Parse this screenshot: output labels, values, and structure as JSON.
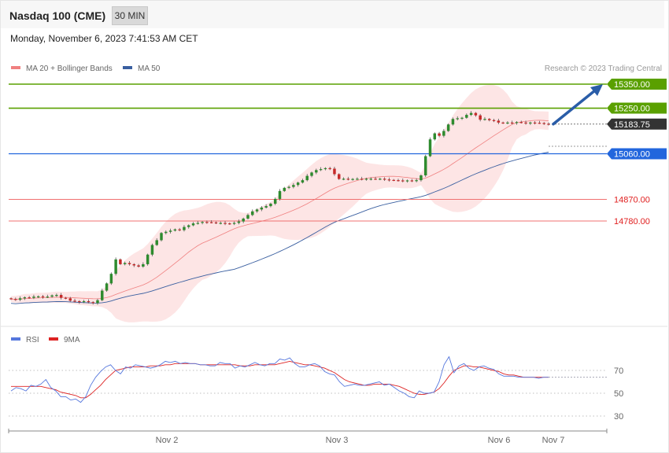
{
  "header": {
    "title": "Nasdaq 100 (CME)",
    "timeframe": "30 MIN",
    "datetime": "Monday, November 6, 2023 7:41:53 AM CET"
  },
  "credit": "Research © 2023 Trading Central",
  "colors": {
    "resistance": "#5aa000",
    "support_blue": "#2266dd",
    "support_red": "#e02020",
    "current": "#333333",
    "ma20": "#f08080",
    "ma50": "#3a5fa0",
    "band_fill": "#fde0e0",
    "rsi": "#5577dd",
    "rsi_ma": "#dd2222",
    "arrow": "#2a5da8"
  },
  "chart_data": [
    {
      "type": "candlestick",
      "legend": [
        {
          "name": "MA 20 + Bollinger Bands",
          "color": "#f08080"
        },
        {
          "name": "MA 50",
          "color": "#3a5fa0"
        }
      ],
      "levels": [
        {
          "value": 15350.0,
          "label": "15350.00",
          "kind": "resistance"
        },
        {
          "value": 15250.0,
          "label": "15250.00",
          "kind": "resistance"
        },
        {
          "value": 15183.75,
          "label": "15183.75",
          "kind": "current"
        },
        {
          "value": 15060.0,
          "label": "15060.00",
          "kind": "pivot"
        },
        {
          "value": 14870.0,
          "label": "14870.00",
          "kind": "support"
        },
        {
          "value": 14780.0,
          "label": "14780.00",
          "kind": "support"
        }
      ],
      "price_closes": [
        14455,
        14452,
        14458,
        14462,
        14460,
        14465,
        14466,
        14463,
        14465,
        14470,
        14472,
        14460,
        14458,
        14448,
        14446,
        14442,
        14446,
        14442,
        14438,
        14450,
        14490,
        14520,
        14560,
        14620,
        14600,
        14605,
        14600,
        14595,
        14590,
        14600,
        14640,
        14680,
        14700,
        14730,
        14735,
        14740,
        14745,
        14742,
        14755,
        14762,
        14770,
        14772,
        14776,
        14775,
        14774,
        14772,
        14772,
        14770,
        14768,
        14772,
        14778,
        14790,
        14805,
        14820,
        14828,
        14836,
        14842,
        14852,
        14872,
        14905,
        14918,
        14922,
        14930,
        14940,
        14950,
        14968,
        14982,
        14992,
        14996,
        15000,
        14998,
        14975,
        14955,
        14956,
        14955,
        14955,
        14956,
        14954,
        14956,
        14956,
        14955,
        14956,
        14953,
        14951,
        14950,
        14949,
        14947,
        14949,
        14946,
        14950,
        14970,
        15050,
        15120,
        15145,
        15135,
        15155,
        15182,
        15205,
        15208,
        15210,
        15222,
        15230,
        15220,
        15202,
        15205,
        15200,
        15198,
        15190,
        15188,
        15190,
        15188,
        15192,
        15190,
        15186,
        15190,
        15189,
        15188,
        15185,
        15183.75
      ],
      "arrow": {
        "from_value": 15183.75,
        "to_value": 15350.0
      },
      "x_labels": [
        "Nov 2",
        "Nov 3",
        "Nov 6",
        "Nov 7"
      ],
      "ylim": [
        14390,
        15380
      ]
    },
    {
      "type": "line",
      "legend": [
        {
          "name": "RSI",
          "color": "#5577dd"
        },
        {
          "name": "9MA",
          "color": "#dd2222"
        }
      ],
      "y_ticks": [
        "70",
        "50",
        "30"
      ],
      "ylim": [
        20,
        90
      ],
      "rsi": [
        52,
        55,
        54,
        52,
        57,
        56,
        58,
        62,
        55,
        52,
        47,
        47,
        44,
        45,
        42,
        47,
        57,
        64,
        69,
        73,
        75,
        70,
        67,
        73,
        72,
        75,
        74,
        73,
        72,
        73,
        75,
        78,
        77,
        78,
        76,
        77,
        76,
        76,
        75,
        75,
        74,
        74,
        77,
        76,
        76,
        72,
        74,
        73,
        75,
        77,
        75,
        74,
        76,
        76,
        80,
        79,
        81,
        76,
        73,
        73,
        75,
        76,
        74,
        69,
        67,
        66,
        60,
        56,
        57,
        58,
        57,
        57,
        58,
        59,
        60,
        57,
        58,
        55,
        52,
        50,
        47,
        46,
        52,
        50,
        50,
        51,
        60,
        75,
        82,
        68,
        74,
        76,
        72,
        70,
        73,
        74,
        72,
        71,
        67,
        65,
        65,
        65,
        64,
        64,
        64,
        64,
        63,
        64,
        64
      ],
      "rsi_ma": [
        56,
        56,
        56,
        56,
        56,
        56,
        56,
        55,
        54,
        53,
        51,
        50,
        49,
        48,
        46,
        46,
        49,
        53,
        57,
        62,
        66,
        70,
        71,
        72,
        73,
        73,
        73,
        73,
        74,
        74,
        74,
        75,
        75,
        76,
        76,
        76,
        76,
        76,
        75,
        75,
        75,
        75,
        75,
        75,
        75,
        75,
        74,
        74,
        74,
        75,
        75,
        75,
        75,
        75,
        76,
        77,
        78,
        77,
        76,
        75,
        75,
        74,
        73,
        72,
        70,
        68,
        65,
        62,
        60,
        59,
        58,
        57,
        57,
        58,
        58,
        58,
        58,
        57,
        56,
        54,
        52,
        50,
        49,
        49,
        50,
        51,
        54,
        59,
        65,
        70,
        72,
        74,
        74,
        73,
        73,
        72,
        71,
        70,
        69,
        67,
        66,
        66,
        65,
        64,
        64,
        64,
        64,
        64,
        64
      ]
    }
  ]
}
